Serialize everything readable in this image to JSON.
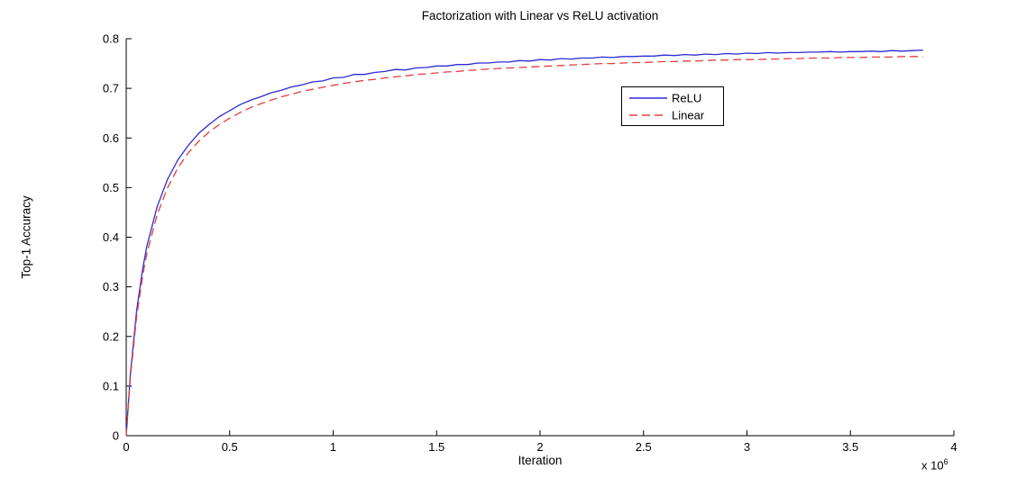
{
  "figure": {
    "title": "Factorization with Linear vs ReLU activation",
    "xlabel": "Iteration",
    "ylabel": "Top-1 Accuracy",
    "x_exponent_prefix": "x 10",
    "x_exponent": "6"
  },
  "chart_data": {
    "type": "line",
    "title": "Factorization with Linear vs ReLU activation",
    "xlabel": "Iteration",
    "ylabel": "Top-1 Accuracy",
    "x_unit_multiplier": "1e6",
    "xlim": [
      0,
      4
    ],
    "ylim": [
      0,
      0.8
    ],
    "grid": false,
    "box": false,
    "axis_color": "#000000",
    "x_ticks": [
      0,
      0.5,
      1,
      1.5,
      2,
      2.5,
      3,
      3.5,
      4
    ],
    "x_tick_labels": [
      "0",
      "0.5",
      "1",
      "1.5",
      "2",
      "2.5",
      "3",
      "3.5",
      "4"
    ],
    "y_ticks": [
      0,
      0.1,
      0.2,
      0.3,
      0.4,
      0.5,
      0.6,
      0.7,
      0.8
    ],
    "y_tick_labels": [
      "0",
      "0.1",
      "0.2",
      "0.3",
      "0.4",
      "0.5",
      "0.6",
      "0.7",
      "0.8"
    ],
    "legend": {
      "position": "upper-center-right",
      "entries": [
        "ReLU",
        "Linear"
      ]
    },
    "x": [
      0,
      0.02,
      0.05,
      0.08,
      0.1,
      0.15,
      0.2,
      0.25,
      0.3,
      0.35,
      0.4,
      0.45,
      0.5,
      0.55,
      0.6,
      0.65,
      0.7,
      0.75,
      0.8,
      0.85,
      0.9,
      0.95,
      1.0,
      1.05,
      1.1,
      1.15,
      1.2,
      1.25,
      1.3,
      1.35,
      1.4,
      1.45,
      1.5,
      1.55,
      1.6,
      1.65,
      1.7,
      1.75,
      1.8,
      1.85,
      1.9,
      1.95,
      2.0,
      2.05,
      2.1,
      2.15,
      2.2,
      2.25,
      2.3,
      2.35,
      2.4,
      2.45,
      2.5,
      2.55,
      2.6,
      2.65,
      2.7,
      2.75,
      2.8,
      2.85,
      2.9,
      2.95,
      3.0,
      3.05,
      3.1,
      3.15,
      3.2,
      3.25,
      3.3,
      3.35,
      3.4,
      3.45,
      3.5,
      3.55,
      3.6,
      3.65,
      3.7,
      3.75,
      3.8,
      3.85
    ],
    "series": [
      {
        "name": "ReLU",
        "color": "#2b2bd5",
        "line_style": "solid",
        "values": [
          0,
          0.124,
          0.251,
          0.338,
          0.382,
          0.462,
          0.517,
          0.556,
          0.585,
          0.609,
          0.627,
          0.643,
          0.655,
          0.667,
          0.676,
          0.683,
          0.691,
          0.696,
          0.703,
          0.707,
          0.713,
          0.715,
          0.721,
          0.722,
          0.728,
          0.728,
          0.732,
          0.734,
          0.738,
          0.737,
          0.741,
          0.742,
          0.745,
          0.745,
          0.748,
          0.748,
          0.751,
          0.751,
          0.753,
          0.753,
          0.756,
          0.755,
          0.758,
          0.757,
          0.76,
          0.759,
          0.761,
          0.761,
          0.763,
          0.762,
          0.764,
          0.764,
          0.765,
          0.765,
          0.767,
          0.766,
          0.768,
          0.767,
          0.769,
          0.768,
          0.77,
          0.769,
          0.771,
          0.77,
          0.772,
          0.771,
          0.772,
          0.772,
          0.773,
          0.773,
          0.774,
          0.773,
          0.774,
          0.774,
          0.775,
          0.774,
          0.776,
          0.775,
          0.776,
          0.777
        ]
      },
      {
        "name": "Linear",
        "color": "#e43f3f",
        "line_style": "dashed",
        "values": [
          0,
          0.117,
          0.239,
          0.324,
          0.367,
          0.446,
          0.5,
          0.54,
          0.57,
          0.593,
          0.612,
          0.627,
          0.64,
          0.651,
          0.661,
          0.669,
          0.676,
          0.683,
          0.688,
          0.694,
          0.698,
          0.702,
          0.706,
          0.71,
          0.713,
          0.716,
          0.718,
          0.721,
          0.723,
          0.725,
          0.728,
          0.729,
          0.731,
          0.733,
          0.734,
          0.736,
          0.737,
          0.739,
          0.74,
          0.741,
          0.742,
          0.743,
          0.744,
          0.745,
          0.746,
          0.747,
          0.748,
          0.749,
          0.75,
          0.75,
          0.751,
          0.752,
          0.752,
          0.753,
          0.754,
          0.754,
          0.755,
          0.755,
          0.756,
          0.757,
          0.757,
          0.758,
          0.758,
          0.758,
          0.759,
          0.759,
          0.76,
          0.76,
          0.761,
          0.761,
          0.761,
          0.762,
          0.762,
          0.762,
          0.763,
          0.763,
          0.763,
          0.764,
          0.764,
          0.764
        ]
      }
    ]
  }
}
